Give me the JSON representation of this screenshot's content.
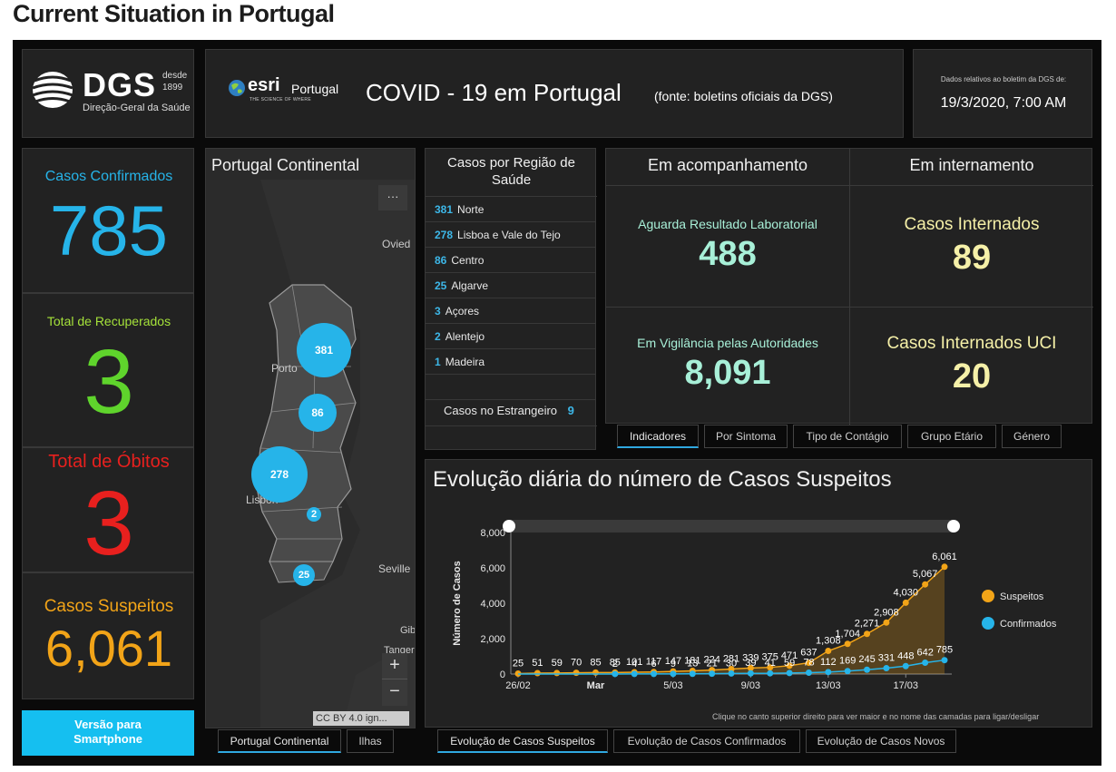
{
  "page": {
    "title": "Current Situation in Portugal"
  },
  "header": {
    "logo_text": "DGS",
    "logo_desde": "desde",
    "logo_year": "1899",
    "logo_sub": "Direção-Geral da Saúde",
    "esri_text": "esri",
    "esri_country": "Portugal",
    "esri_tagline": "THE SCIENCE OF WHERE",
    "title": "COVID - 19 em Portugal",
    "source": "(fonte: boletins oficiais da DGS)",
    "date_label": "Dados relativos ao boletim da DGS de:",
    "date_value": "19/3/2020, 7:00 AM"
  },
  "stats": {
    "confirmed_label": "Casos Confirmados",
    "confirmed_value": "785",
    "recovered_label": "Total de Recuperados",
    "recovered_value": "3",
    "deaths_label": "Total de Óbitos",
    "deaths_value": "3",
    "suspected_label": "Casos Suspeitos",
    "suspected_value": "6,061",
    "smartphone_button": "Versão para Smartphone"
  },
  "map": {
    "title": "Portugal Continental",
    "menu_label": "···",
    "places": {
      "oviedo": "Ovied",
      "porto": "Porto",
      "lisbon": "Lisbon",
      "seville": "Seville",
      "gib": "Gib",
      "tanger": "Tanger"
    },
    "clusters": [
      {
        "label": "381"
      },
      {
        "label": "86"
      },
      {
        "label": "278"
      },
      {
        "label": "2"
      },
      {
        "label": "25"
      }
    ],
    "zoom_in": "+",
    "zoom_out": "−",
    "attribution": "CC BY 4.0 ign...",
    "tabs": [
      "Portugal Continental",
      "Ilhas"
    ]
  },
  "regions": {
    "title": "Casos por Região de Saúde",
    "items": [
      {
        "count": "381",
        "name": "Norte"
      },
      {
        "count": "278",
        "name": "Lisboa e Vale do Tejo"
      },
      {
        "count": "86",
        "name": "Centro"
      },
      {
        "count": "25",
        "name": "Algarve"
      },
      {
        "count": "3",
        "name": "Açores"
      },
      {
        "count": "2",
        "name": "Alentejo"
      },
      {
        "count": "1",
        "name": "Madeira"
      }
    ],
    "abroad_label": "Casos no Estrangeiro",
    "abroad_value": "9"
  },
  "indicators": {
    "col1_title": "Em acompanhamento",
    "col2_title": "Em internamento",
    "awaiting_label": "Aguarda Resultado Laboratorial",
    "awaiting_value": "488",
    "hospital_label": "Casos Internados",
    "hospital_value": "89",
    "surveillance_label": "Em Vigilância pelas Autoridades",
    "surveillance_value": "8,091",
    "icu_label": "Casos Internados UCI",
    "icu_value": "20",
    "tabs": [
      "Indicadores",
      "Por Sintoma",
      "Tipo de Contágio",
      "Grupo Etário",
      "Género"
    ]
  },
  "chart_panel": {
    "title": "Evolução diária do número de Casos Suspeitos",
    "footnote": "Clique no canto superior direito para ver maior e no nome das camadas para ligar/desligar",
    "tabs": [
      "Evolução de Casos Suspeitos",
      "Evolução de Casos Confirmados",
      "Evolução de Casos Novos"
    ]
  },
  "colors": {
    "confirmed": "#26b4e9",
    "recovered": "#5fd42c",
    "deaths": "#e8201e",
    "suspected": "#f2a418",
    "mint": "#a8f0d8",
    "cream": "#f5f0a8",
    "button": "#15bff0"
  },
  "chart_data": {
    "type": "line",
    "ylabel": "Número de Casos",
    "ylim": [
      0,
      8000
    ],
    "yticks": [
      "0",
      "2,000",
      "4,000",
      "6,000",
      "8,000"
    ],
    "x_tick_labels": [
      "26/02",
      "Mar",
      "5/03",
      "9/03",
      "13/03",
      "17/03"
    ],
    "series": [
      {
        "name": "Suspeitos",
        "values": [
          25,
          51,
          59,
          70,
          85,
          85,
          101,
          117,
          147,
          181,
          224,
          281,
          339,
          375,
          471,
          637,
          1308,
          1704,
          2271,
          2908,
          4030,
          5067,
          6061
        ],
        "labels": [
          "25",
          "51",
          "59",
          "70",
          "85",
          "85",
          "101",
          "117",
          "147",
          "181",
          "224",
          "281",
          "339",
          "375",
          "471",
          "637",
          "1,308",
          "1,704",
          "2,271",
          "2,908",
          "4,030",
          "5,067",
          "6,061"
        ]
      },
      {
        "name": "Confirmados",
        "values": [
          0,
          0,
          0,
          0,
          0,
          2,
          4,
          6,
          9,
          13,
          21,
          30,
          39,
          41,
          59,
          78,
          112,
          169,
          245,
          331,
          448,
          642,
          785
        ],
        "labels": [
          "",
          "",
          "",
          "",
          "",
          "2",
          "4",
          "6",
          "9",
          "13",
          "21",
          "30",
          "39",
          "41",
          "59",
          "78",
          "112",
          "169",
          "245",
          "331",
          "448",
          "642",
          "785"
        ]
      }
    ],
    "legend": "right"
  }
}
